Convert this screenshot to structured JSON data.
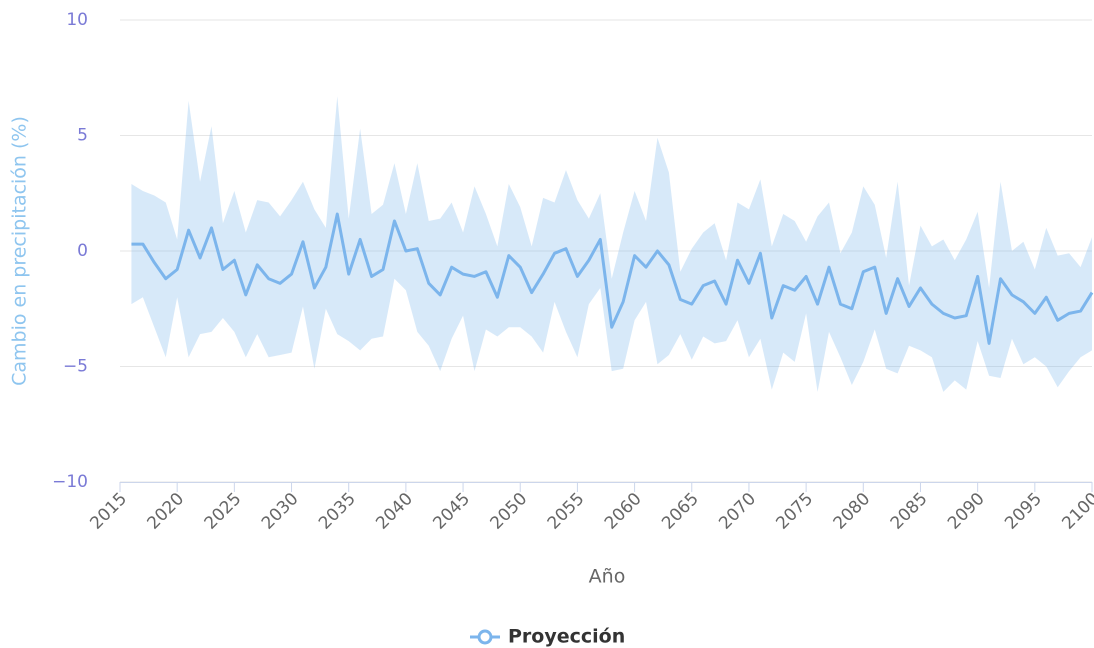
{
  "chart_data": {
    "type": "arearange-line",
    "y_axis_label": "Cambio en precipitación (%)",
    "x_axis_label": "Año",
    "x": [
      2016,
      2017,
      2018,
      2019,
      2020,
      2021,
      2022,
      2023,
      2024,
      2025,
      2026,
      2027,
      2028,
      2029,
      2030,
      2031,
      2032,
      2033,
      2034,
      2035,
      2036,
      2037,
      2038,
      2039,
      2040,
      2041,
      2042,
      2043,
      2044,
      2045,
      2046,
      2047,
      2048,
      2049,
      2050,
      2051,
      2052,
      2053,
      2054,
      2055,
      2056,
      2057,
      2058,
      2059,
      2060,
      2061,
      2062,
      2063,
      2064,
      2065,
      2066,
      2067,
      2068,
      2069,
      2070,
      2071,
      2072,
      2073,
      2074,
      2075,
      2076,
      2077,
      2078,
      2079,
      2080,
      2081,
      2082,
      2083,
      2084,
      2085,
      2086,
      2087,
      2088,
      2089,
      2090,
      2091,
      2092,
      2093,
      2094,
      2095,
      2096,
      2097,
      2098,
      2099,
      2100
    ],
    "series": [
      {
        "name": "Proyección",
        "color": "#7cb5ec",
        "band_color": "rgba(124,181,236,0.3)",
        "values": [
          0.3,
          0.3,
          -0.5,
          -1.2,
          -0.8,
          0.9,
          -0.3,
          1.0,
          -0.8,
          -0.4,
          -1.9,
          -0.6,
          -1.2,
          -1.4,
          -1.0,
          0.4,
          -1.6,
          -0.7,
          1.6,
          -1.0,
          0.5,
          -1.1,
          -0.8,
          1.3,
          0.0,
          0.1,
          -1.4,
          -1.9,
          -0.7,
          -1.0,
          -1.1,
          -0.9,
          -2.0,
          -0.2,
          -0.7,
          -1.8,
          -1.0,
          -0.1,
          0.1,
          -1.1,
          -0.4,
          0.5,
          -3.3,
          -2.2,
          -0.2,
          -0.7,
          0.0,
          -0.6,
          -2.1,
          -2.3,
          -1.5,
          -1.3,
          -2.3,
          -0.4,
          -1.4,
          -0.1,
          -2.9,
          -1.5,
          -1.7,
          -1.1,
          -2.3,
          -0.7,
          -2.3,
          -2.5,
          -0.9,
          -0.7,
          -2.7,
          -1.2,
          -2.4,
          -1.6,
          -2.3,
          -2.7,
          -2.9,
          -2.8,
          -1.1,
          -4.0,
          -1.2,
          -1.9,
          -2.2,
          -2.7,
          -2.0,
          -3.0,
          -2.7,
          -2.6,
          -1.8
        ],
        "high": [
          2.9,
          2.6,
          2.4,
          2.1,
          0.5,
          6.5,
          3.0,
          5.4,
          1.2,
          2.6,
          0.8,
          2.2,
          2.1,
          1.5,
          2.2,
          3.0,
          1.8,
          1.0,
          6.7,
          1.4,
          5.3,
          1.6,
          2.0,
          3.8,
          1.6,
          3.8,
          1.3,
          1.4,
          2.1,
          0.8,
          2.8,
          1.6,
          0.2,
          2.9,
          1.9,
          0.2,
          2.3,
          2.1,
          3.5,
          2.2,
          1.4,
          2.5,
          -1.2,
          0.8,
          2.6,
          1.3,
          4.9,
          3.4,
          -0.9,
          0.1,
          0.8,
          1.2,
          -0.4,
          2.1,
          1.8,
          3.1,
          0.2,
          1.6,
          1.3,
          0.4,
          1.5,
          2.1,
          -0.1,
          0.8,
          2.8,
          2.0,
          -0.3,
          3.0,
          -1.5,
          1.1,
          0.2,
          0.5,
          -0.4,
          0.5,
          1.7,
          -1.6,
          3.0,
          0.0,
          0.4,
          -0.8,
          1.0,
          -0.2,
          -0.1,
          -0.7,
          0.6
        ],
        "low": [
          -2.3,
          -2.0,
          -3.3,
          -4.6,
          -2.0,
          -4.6,
          -3.6,
          -3.5,
          -2.9,
          -3.5,
          -4.6,
          -3.6,
          -4.6,
          -4.5,
          -4.4,
          -2.4,
          -5.1,
          -2.5,
          -3.6,
          -3.9,
          -4.3,
          -3.8,
          -3.7,
          -1.2,
          -1.7,
          -3.5,
          -4.1,
          -5.2,
          -3.8,
          -2.8,
          -5.2,
          -3.4,
          -3.7,
          -3.3,
          -3.3,
          -3.7,
          -4.4,
          -2.2,
          -3.5,
          -4.6,
          -2.3,
          -1.6,
          -5.2,
          -5.1,
          -3.0,
          -2.2,
          -4.9,
          -4.5,
          -3.6,
          -4.7,
          -3.7,
          -4.0,
          -3.9,
          -3.0,
          -4.6,
          -3.8,
          -6.0,
          -4.4,
          -4.8,
          -2.7,
          -6.1,
          -3.5,
          -4.6,
          -5.8,
          -4.8,
          -3.4,
          -5.1,
          -5.3,
          -4.1,
          -4.3,
          -4.6,
          -6.1,
          -5.6,
          -6.0,
          -3.9,
          -5.4,
          -5.5,
          -3.8,
          -4.9,
          -4.6,
          -5.0,
          -5.9,
          -5.2,
          -4.6,
          -4.3
        ]
      }
    ],
    "xlim": [
      2015,
      2100
    ],
    "xticks": [
      2015,
      2020,
      2025,
      2030,
      2035,
      2040,
      2045,
      2050,
      2055,
      2060,
      2065,
      2070,
      2075,
      2080,
      2085,
      2090,
      2095,
      2100
    ],
    "ylim": [
      -10,
      10
    ],
    "yticks": [
      {
        "value": -10,
        "label": "−10"
      },
      {
        "value": -5,
        "label": "−5"
      },
      0,
      5,
      10
    ],
    "grid": true,
    "legend": "bottom"
  }
}
